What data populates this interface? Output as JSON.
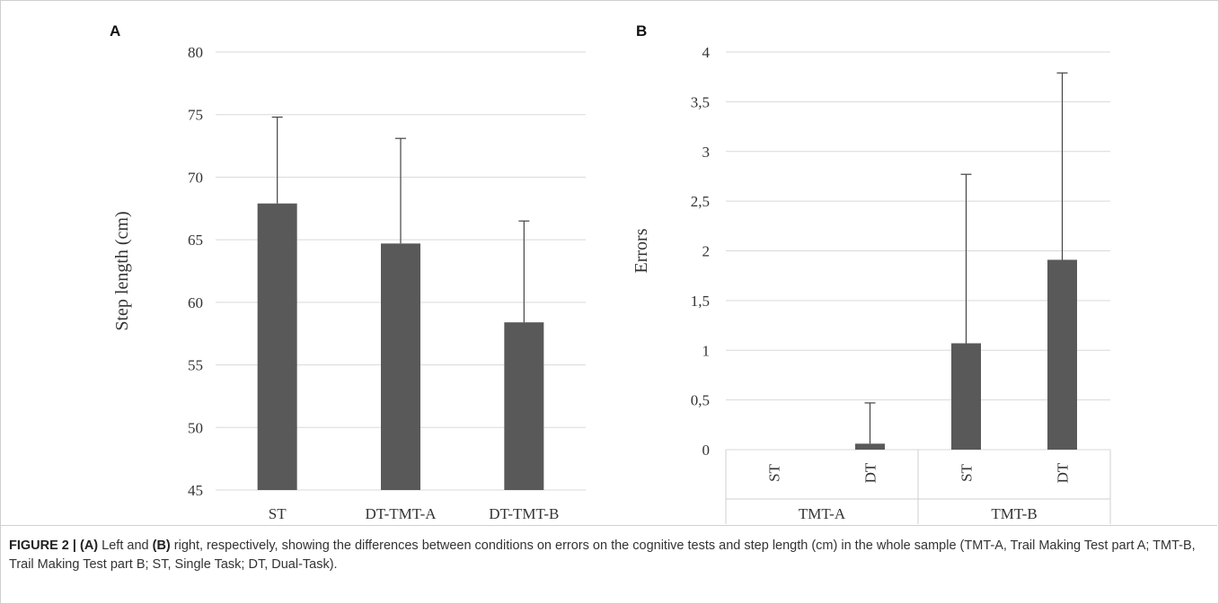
{
  "chart_data": [
    {
      "type": "bar",
      "panel_label": "A",
      "categories": [
        "ST",
        "DT-TMT-A",
        "DT-TMT-B"
      ],
      "values": [
        67.9,
        64.7,
        58.4
      ],
      "error_upper": [
        74.8,
        73.1,
        66.5
      ],
      "ylabel": "Step length (cm)",
      "ylim": [
        45,
        80
      ],
      "yticks": [
        "45",
        "50",
        "55",
        "60",
        "65",
        "70",
        "75",
        "80"
      ],
      "grid": true,
      "bar_color": "#595959"
    },
    {
      "type": "bar",
      "panel_label": "B",
      "groups": [
        {
          "label": "TMT-A",
          "categories": [
            "ST",
            "DT"
          ]
        },
        {
          "label": "TMT-B",
          "categories": [
            "ST",
            "DT"
          ]
        }
      ],
      "values": [
        0,
        0.06,
        1.07,
        1.91
      ],
      "error_upper": [
        0,
        0.47,
        2.77,
        3.79
      ],
      "ylabel": "Errors",
      "ylim": [
        0,
        4
      ],
      "yticks": [
        "0",
        "0,5",
        "1",
        "1,5",
        "2",
        "2,5",
        "3",
        "3,5",
        "4"
      ],
      "grid": true,
      "bar_color": "#595959"
    }
  ],
  "caption": {
    "figure_label": "FIGURE 2 |",
    "part_a": "(A)",
    "text_1": " Left and ",
    "part_b": "(B)",
    "text_2": " right, respectively, showing the differences between conditions on errors on the cognitive tests and step length (cm) in the whole sample (TMT-A, Trail Making Test part A; TMT-B, Trail Making Test part B; ST, Single Task; DT, Dual-Task)."
  }
}
